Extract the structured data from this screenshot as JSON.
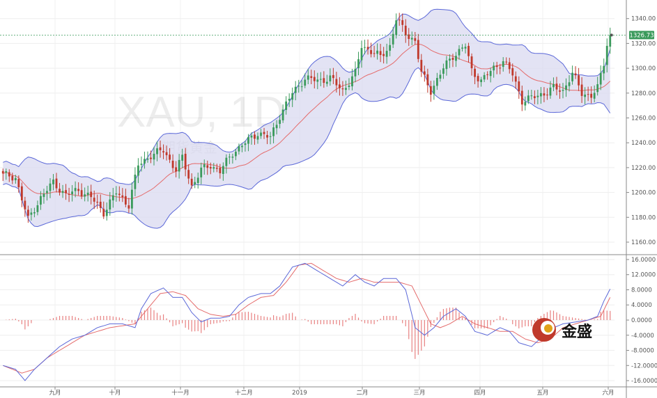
{
  "chart_data": [
    {
      "type": "candlestick",
      "symbol": "XAU",
      "interval": "1D",
      "watermark": "XAU, 1D",
      "watermark_sub": "期货黄金",
      "ylim": [
        1150,
        1350
      ],
      "y_ticks": [
        "1160.00",
        "1180.00",
        "1200.00",
        "1220.00",
        "1240.00",
        "1260.00",
        "1280.00",
        "1300.00",
        "1320.00",
        "1340.00"
      ],
      "last_price": "1326.73",
      "month_labels": [
        "九月",
        "十月",
        "十一月",
        "十二月",
        "2019",
        "二月",
        "三月",
        "四月",
        "五月",
        "六月"
      ],
      "overlays": [
        "bollinger_bands_20",
        "moving_average_20"
      ],
      "colors": {
        "up": "#3a9a5b",
        "down": "#c0392b",
        "band_fill": "#d9daf0",
        "band_line": "#5a67d8",
        "ma": "#e46b6b",
        "price_line": "#3a9a5b"
      },
      "close_anchors": [
        [
          0,
          1214
        ],
        [
          4,
          1212
        ],
        [
          8,
          1178
        ],
        [
          12,
          1196
        ],
        [
          16,
          1208
        ],
        [
          20,
          1198
        ],
        [
          24,
          1202
        ],
        [
          28,
          1196
        ],
        [
          32,
          1184
        ],
        [
          36,
          1200
        ],
        [
          40,
          1190
        ],
        [
          43,
          1222
        ],
        [
          47,
          1230
        ],
        [
          51,
          1234
        ],
        [
          55,
          1218
        ],
        [
          57,
          1228
        ],
        [
          60,
          1205
        ],
        [
          63,
          1218
        ],
        [
          66,
          1222
        ],
        [
          69,
          1217
        ],
        [
          73,
          1232
        ],
        [
          77,
          1240
        ],
        [
          81,
          1248
        ],
        [
          85,
          1244
        ],
        [
          88,
          1262
        ],
        [
          92,
          1280
        ],
        [
          96,
          1292
        ],
        [
          100,
          1290
        ],
        [
          104,
          1292
        ],
        [
          108,
          1282
        ],
        [
          112,
          1296
        ],
        [
          114,
          1318
        ],
        [
          117,
          1314
        ],
        [
          120,
          1309
        ],
        [
          123,
          1318
        ],
        [
          125,
          1340
        ],
        [
          128,
          1328
        ],
        [
          131,
          1322
        ],
        [
          133,
          1296
        ],
        [
          136,
          1282
        ],
        [
          140,
          1300
        ],
        [
          143,
          1310
        ],
        [
          147,
          1318
        ],
        [
          149,
          1298
        ],
        [
          152,
          1290
        ],
        [
          156,
          1300
        ],
        [
          159,
          1306
        ],
        [
          162,
          1295
        ],
        [
          165,
          1274
        ],
        [
          168,
          1276
        ],
        [
          172,
          1280
        ],
        [
          175,
          1284
        ],
        [
          178,
          1282
        ],
        [
          181,
          1296
        ],
        [
          184,
          1280
        ],
        [
          187,
          1278
        ],
        [
          189,
          1284
        ],
        [
          191,
          1304
        ],
        [
          192,
          1320
        ],
        [
          193,
          1326.73
        ]
      ]
    },
    {
      "type": "macd",
      "ylim": [
        -17,
        17
      ],
      "y_ticks": [
        "16.0000",
        "12.0000",
        "8.0000",
        "4.0000",
        "0.0000",
        "-4.0000",
        "-8.0000",
        "-12.0000",
        "-16.0000"
      ],
      "colors": {
        "macd": "#5a67d8",
        "signal": "#e46b6b",
        "histogram": "#e46b6b"
      },
      "macd_anchors": [
        [
          0,
          -12
        ],
        [
          4,
          -13
        ],
        [
          7,
          -16
        ],
        [
          10,
          -13
        ],
        [
          14,
          -10
        ],
        [
          18,
          -7
        ],
        [
          22,
          -5
        ],
        [
          26,
          -4
        ],
        [
          30,
          -2
        ],
        [
          34,
          -1
        ],
        [
          38,
          -1
        ],
        [
          42,
          -2
        ],
        [
          44,
          3
        ],
        [
          47,
          7
        ],
        [
          51,
          8.5
        ],
        [
          54,
          6
        ],
        [
          57,
          6
        ],
        [
          60,
          2
        ],
        [
          63,
          -0.5
        ],
        [
          66,
          0.5
        ],
        [
          69,
          0.5
        ],
        [
          72,
          1
        ],
        [
          75,
          4
        ],
        [
          78,
          6
        ],
        [
          82,
          7
        ],
        [
          85,
          7
        ],
        [
          88,
          9
        ],
        [
          92,
          14
        ],
        [
          96,
          15
        ],
        [
          100,
          13
        ],
        [
          104,
          11
        ],
        [
          108,
          9
        ],
        [
          112,
          12
        ],
        [
          115,
          10
        ],
        [
          118,
          9
        ],
        [
          121,
          11
        ],
        [
          125,
          11
        ],
        [
          128,
          8
        ],
        [
          131,
          -2
        ],
        [
          134,
          -4
        ],
        [
          137,
          -2
        ],
        [
          140,
          1
        ],
        [
          144,
          3
        ],
        [
          147,
          1
        ],
        [
          150,
          -3
        ],
        [
          154,
          -4
        ],
        [
          158,
          -2
        ],
        [
          161,
          -3
        ],
        [
          164,
          -6
        ],
        [
          168,
          -7
        ],
        [
          172,
          -4
        ],
        [
          175,
          -2
        ],
        [
          178,
          -1
        ],
        [
          182,
          -0.5
        ],
        [
          186,
          0
        ],
        [
          189,
          1
        ],
        [
          191,
          5
        ],
        [
          193,
          8.2
        ]
      ],
      "signal_anchors": [
        [
          0,
          -12
        ],
        [
          6,
          -14
        ],
        [
          10,
          -13
        ],
        [
          14,
          -10
        ],
        [
          18,
          -8
        ],
        [
          22,
          -6
        ],
        [
          26,
          -4
        ],
        [
          30,
          -3
        ],
        [
          34,
          -2
        ],
        [
          38,
          -1.5
        ],
        [
          42,
          -1
        ],
        [
          46,
          3
        ],
        [
          50,
          7
        ],
        [
          54,
          7.5
        ],
        [
          58,
          6.5
        ],
        [
          62,
          3
        ],
        [
          66,
          1.5
        ],
        [
          70,
          1
        ],
        [
          74,
          1.5
        ],
        [
          78,
          4
        ],
        [
          82,
          6
        ],
        [
          86,
          6.5
        ],
        [
          90,
          10
        ],
        [
          94,
          14.5
        ],
        [
          98,
          15
        ],
        [
          102,
          13
        ],
        [
          106,
          11
        ],
        [
          110,
          10
        ],
        [
          114,
          11
        ],
        [
          118,
          10
        ],
        [
          122,
          10
        ],
        [
          126,
          10
        ],
        [
          130,
          9
        ],
        [
          133,
          4
        ],
        [
          136,
          -1
        ],
        [
          139,
          -2
        ],
        [
          142,
          -1
        ],
        [
          146,
          1
        ],
        [
          150,
          -1
        ],
        [
          154,
          -2
        ],
        [
          158,
          -3
        ],
        [
          162,
          -3
        ],
        [
          166,
          -5
        ],
        [
          170,
          -6
        ],
        [
          174,
          -5
        ],
        [
          178,
          -2
        ],
        [
          182,
          -1
        ],
        [
          186,
          0
        ],
        [
          190,
          1
        ],
        [
          193,
          6
        ]
      ]
    }
  ],
  "logo": {
    "text": "金盛",
    "icon": "jinsheng-logo-icon"
  }
}
